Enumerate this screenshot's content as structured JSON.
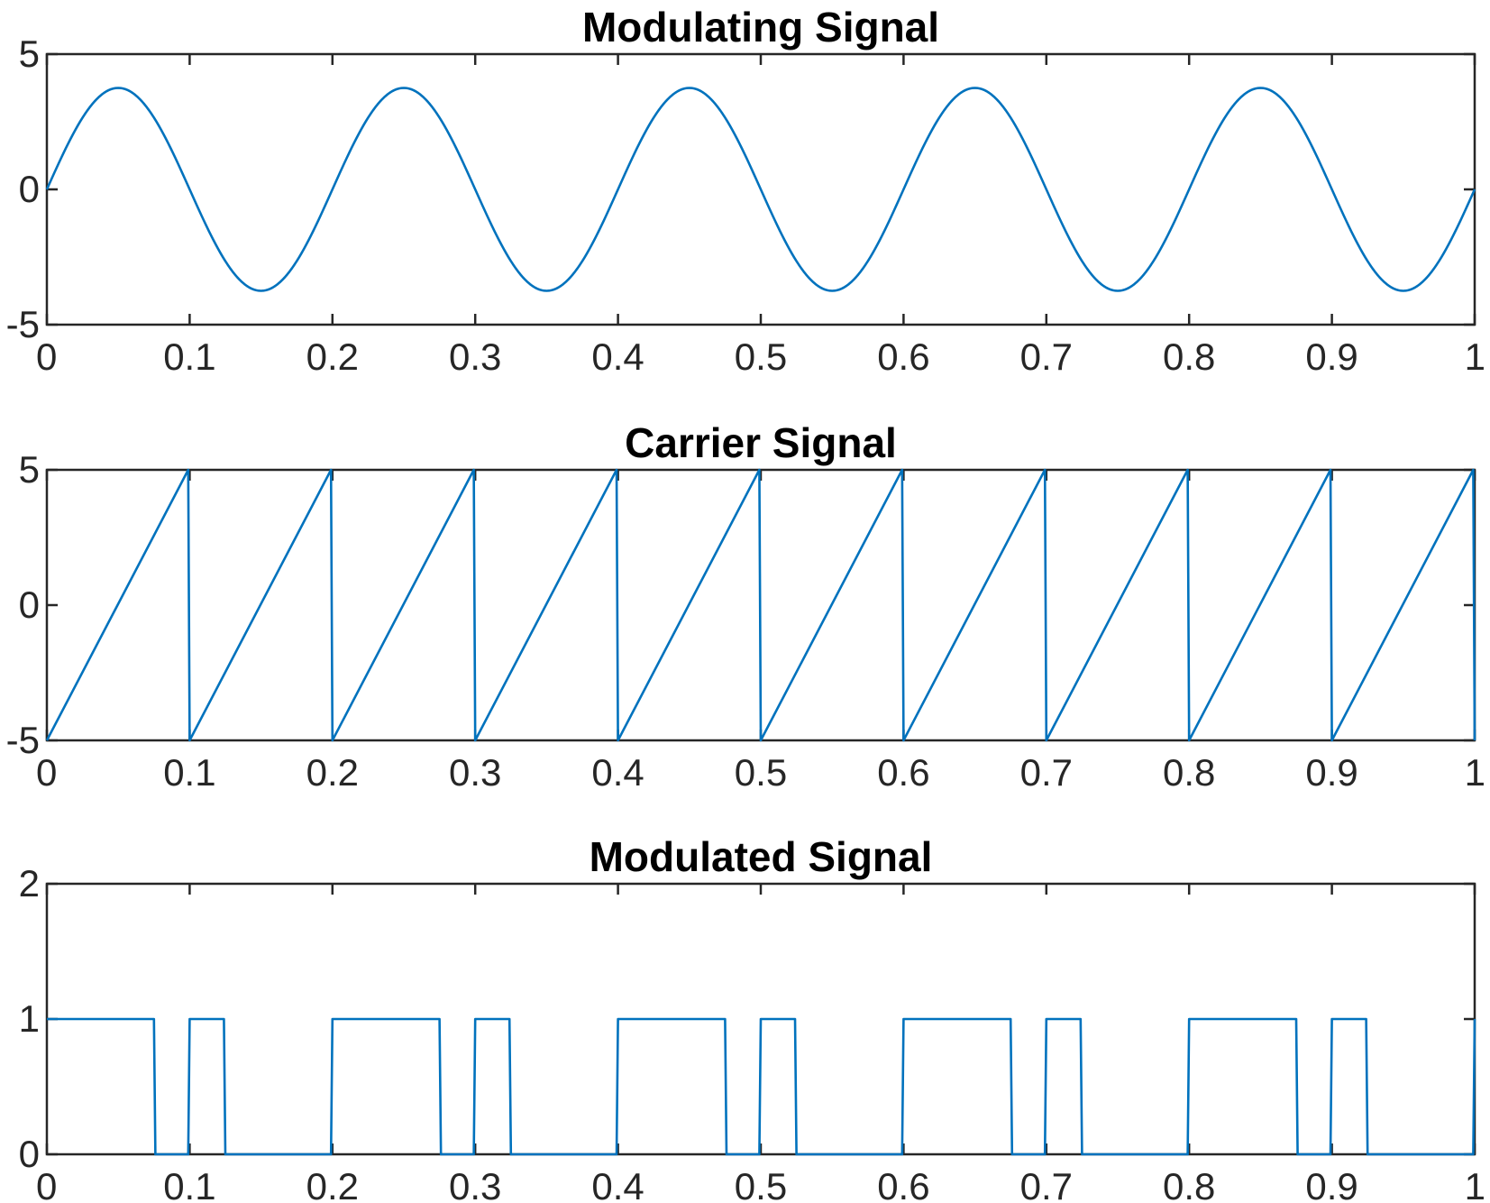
{
  "chart_data": [
    {
      "id": "modulating",
      "type": "line",
      "title": "Modulating Signal",
      "xlabel": "",
      "ylabel": "",
      "xlim": [
        0,
        1
      ],
      "ylim": [
        -5,
        5
      ],
      "x_ticks": [
        0,
        0.1,
        0.2,
        0.3,
        0.4,
        0.5,
        0.6,
        0.7,
        0.8,
        0.9,
        1
      ],
      "x_tick_labels": [
        "0",
        "0.1",
        "0.2",
        "0.3",
        "0.4",
        "0.5",
        "0.6",
        "0.7",
        "0.8",
        "0.9",
        "1"
      ],
      "y_ticks": [
        -5,
        0,
        5
      ],
      "y_tick_labels": [
        "-5",
        "0",
        "5"
      ],
      "grid": false,
      "series": [
        {
          "color": "#0072BD",
          "function": "sine",
          "amplitude": 3.75,
          "frequency": 5,
          "x_range": [
            0,
            1
          ]
        }
      ]
    },
    {
      "id": "carrier",
      "type": "line",
      "title": "Carrier Signal",
      "xlabel": "",
      "ylabel": "",
      "xlim": [
        0,
        1
      ],
      "ylim": [
        -5,
        5
      ],
      "x_ticks": [
        0,
        0.1,
        0.2,
        0.3,
        0.4,
        0.5,
        0.6,
        0.7,
        0.8,
        0.9,
        1
      ],
      "x_tick_labels": [
        "0",
        "0.1",
        "0.2",
        "0.3",
        "0.4",
        "0.5",
        "0.6",
        "0.7",
        "0.8",
        "0.9",
        "1"
      ],
      "y_ticks": [
        -5,
        0,
        5
      ],
      "y_tick_labels": [
        "-5",
        "0",
        "5"
      ],
      "grid": false,
      "series": [
        {
          "color": "#0072BD",
          "x": [
            0,
            0.099,
            0.1,
            0.199,
            0.2,
            0.299,
            0.3,
            0.399,
            0.4,
            0.499,
            0.5,
            0.599,
            0.6,
            0.699,
            0.7,
            0.799,
            0.8,
            0.899,
            0.9,
            0.999,
            1
          ],
          "y": [
            -5,
            5,
            -5,
            5,
            -5,
            5,
            -5,
            5,
            -5,
            5,
            -5,
            5,
            -5,
            5,
            -5,
            5,
            -5,
            5,
            -5,
            5,
            -5
          ]
        }
      ]
    },
    {
      "id": "modulated",
      "type": "line",
      "title": "Modulated Signal",
      "xlabel": "",
      "ylabel": "",
      "xlim": [
        0,
        1
      ],
      "ylim": [
        0,
        2
      ],
      "x_ticks": [
        0,
        0.1,
        0.2,
        0.3,
        0.4,
        0.5,
        0.6,
        0.7,
        0.8,
        0.9,
        1
      ],
      "x_tick_labels": [
        "0",
        "0.1",
        "0.2",
        "0.3",
        "0.4",
        "0.5",
        "0.6",
        "0.7",
        "0.8",
        "0.9",
        "1"
      ],
      "y_ticks": [
        0,
        1,
        2
      ],
      "y_tick_labels": [
        "0",
        "1",
        "2"
      ],
      "grid": false,
      "series": [
        {
          "color": "#0072BD",
          "x": [
            0,
            0.075,
            0.076,
            0.099,
            0.1,
            0.124,
            0.125,
            0.199,
            0.2,
            0.275,
            0.276,
            0.299,
            0.3,
            0.324,
            0.325,
            0.399,
            0.4,
            0.475,
            0.476,
            0.499,
            0.5,
            0.524,
            0.525,
            0.599,
            0.6,
            0.675,
            0.676,
            0.699,
            0.7,
            0.724,
            0.725,
            0.799,
            0.8,
            0.875,
            0.876,
            0.899,
            0.9,
            0.924,
            0.925,
            0.999,
            1
          ],
          "y": [
            1,
            1,
            0,
            0,
            1,
            1,
            0,
            0,
            1,
            1,
            0,
            0,
            1,
            1,
            0,
            0,
            1,
            1,
            0,
            0,
            1,
            1,
            0,
            0,
            1,
            1,
            0,
            0,
            1,
            1,
            0,
            0,
            1,
            1,
            0,
            0,
            1,
            1,
            0,
            0,
            1
          ]
        }
      ]
    }
  ]
}
